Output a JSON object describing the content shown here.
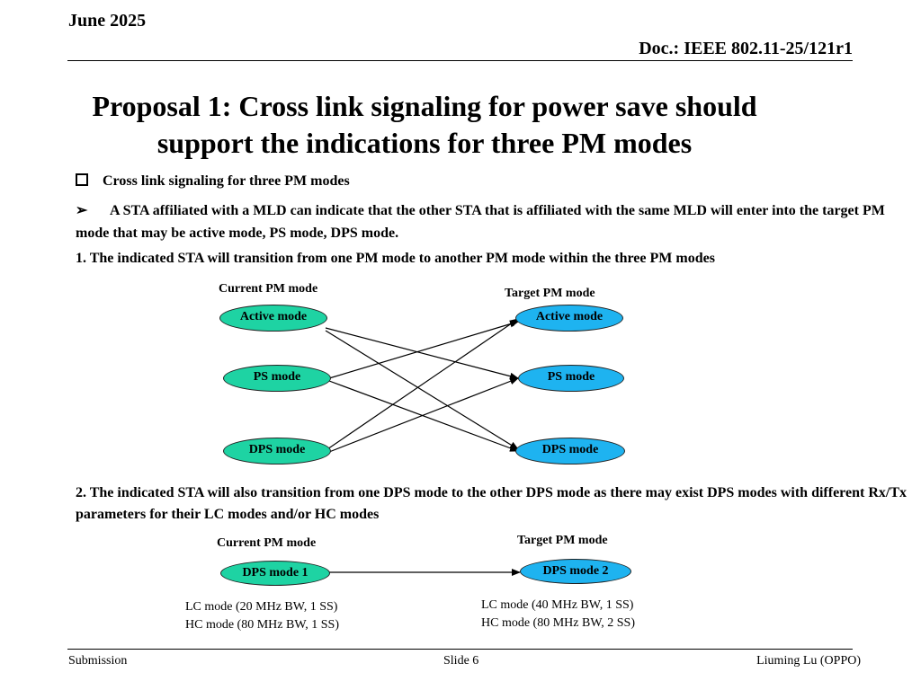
{
  "header": {
    "date": "June 2025",
    "doc": "Doc.: IEEE 802.11-25/121r1"
  },
  "title": {
    "line1": "Proposal 1: Cross link signaling for power save should",
    "line2": "support the indications for three PM modes"
  },
  "bullets": {
    "square_item": "Cross link signaling for three PM modes",
    "arrow_glyph": "➢",
    "arrow_item": "A STA affiliated with a MLD can indicate that the other STA that is affiliated with the same MLD  will enter into the target PM mode that may be active mode, PS mode, DPS mode."
  },
  "point1": "1. The  indicated STA will transition from one PM mode to another PM mode within the three PM modes",
  "diagram1": {
    "current_label": "Current PM mode",
    "target_label": "Target PM mode",
    "current_modes": [
      "Active mode",
      "PS mode",
      "DPS mode"
    ],
    "target_modes": [
      "Active mode",
      "PS mode",
      "DPS mode"
    ]
  },
  "point2": "2. The  indicated STA will also transition from one DPS mode to the other DPS mode as there may exist DPS modes with different Rx/Tx parameters for their LC modes and/or HC modes",
  "diagram2": {
    "current_label": "Current PM mode",
    "target_label": "Target PM mode",
    "source": "DPS mode 1",
    "target": "DPS mode 2",
    "source_lc": "LC mode (20 MHz BW, 1 SS)",
    "source_hc": "HC mode (80 MHz BW, 1 SS)",
    "target_lc": "LC mode (40 MHz BW, 1 SS)",
    "target_hc": "HC mode (80 MHz BW, 2 SS)"
  },
  "colors": {
    "current_fill": "#1ed3a3",
    "target_fill": "#1eb3f0"
  },
  "footer": {
    "left": "Submission",
    "center": "Slide 6",
    "right": "Liuming Lu (OPPO)"
  }
}
